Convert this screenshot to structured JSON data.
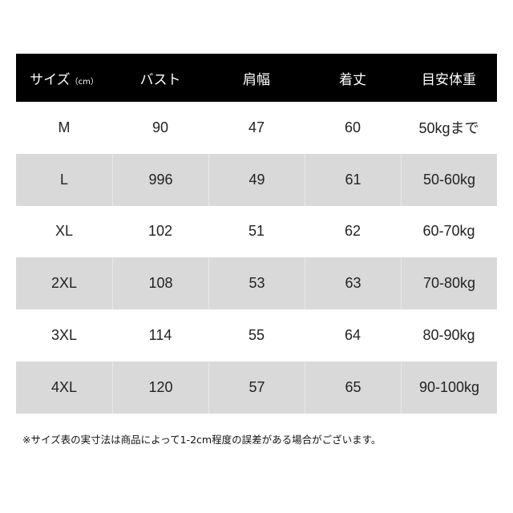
{
  "header": {
    "size": "サイズ",
    "size_unit": "（cm）",
    "bust": "バスト",
    "shoulder": "肩幅",
    "length": "着丈",
    "weight": "目安体重"
  },
  "rows": [
    [
      "M",
      "90",
      "47",
      "60",
      "50kgまで"
    ],
    [
      "L",
      "996",
      "49",
      "61",
      "50-60kg"
    ],
    [
      "XL",
      "102",
      "51",
      "62",
      "60-70kg"
    ],
    [
      "2XL",
      "108",
      "53",
      "63",
      "70-80kg"
    ],
    [
      "3XL",
      "114",
      "55",
      "64",
      "80-90kg"
    ],
    [
      "4XL",
      "120",
      "57",
      "65",
      "90-100kg"
    ]
  ],
  "note": "※サイズ表の実寸法は商品によって1-2cm程度の誤差がある場合がございます。",
  "colors": {
    "header_bg": "#000000",
    "alt_row_bg": "#d9d9d9"
  }
}
